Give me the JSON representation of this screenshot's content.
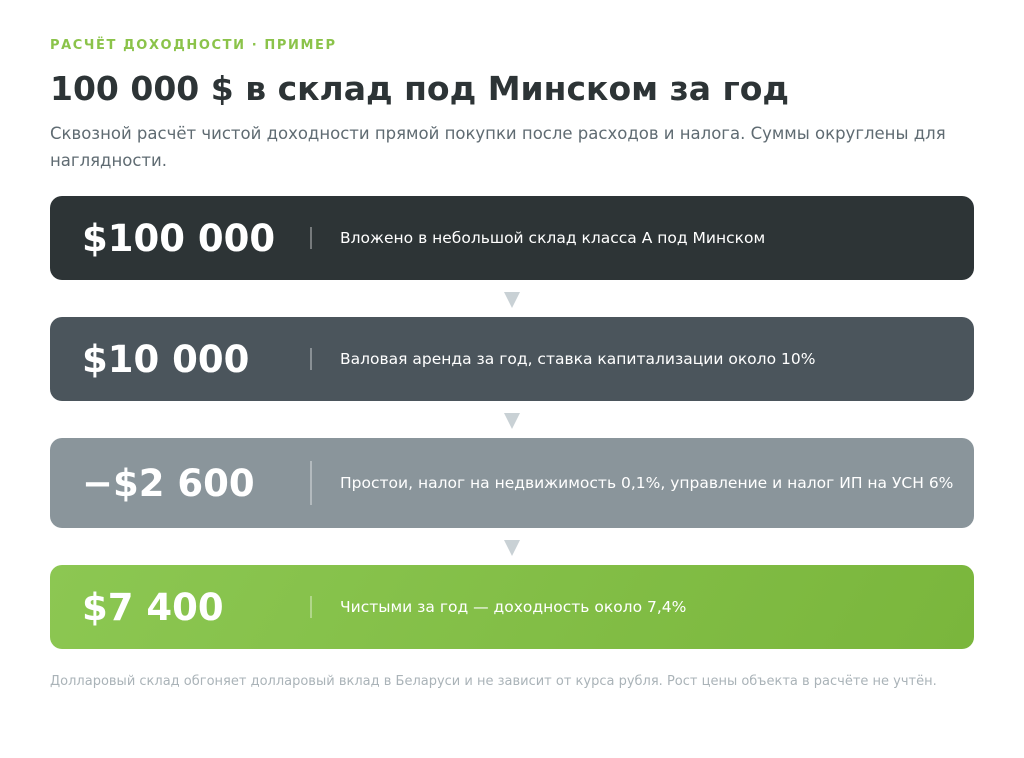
{
  "header": {
    "eyebrow": "РАСЧЁТ ДОХОДНОСТИ · ПРИМЕР",
    "title": "100 000 $ в склад под Минском за год",
    "subtitle": "Сквозной расчёт чистой доходности прямой покупки после расходов и налога. Суммы округлены для наглядности."
  },
  "steps": [
    {
      "amount": "$100 000",
      "text": "Вложено в небольшой склад класса А под Минском"
    },
    {
      "amount": "$10 000",
      "text": "Валовая аренда за год, ставка капитализации около 10%"
    },
    {
      "amount": "−$2 600",
      "text": "Простои, налог на недвижимость 0,1%, управление и налог ИП на УСН 6%"
    },
    {
      "amount": "$7 400",
      "text": "Чистыми за год — доходность около 7,4%"
    }
  ],
  "footnote": "Долларовый склад обгоняет долларовый вклад в Беларуси и не зависит от курса рубля. Рост цены объекта в расчёте не учтён."
}
